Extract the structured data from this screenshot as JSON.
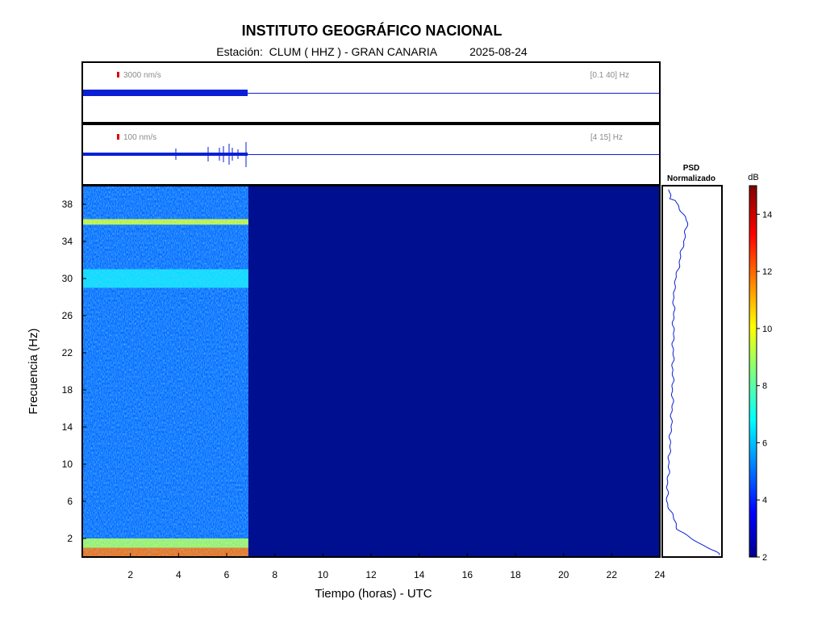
{
  "header": {
    "title": "INSTITUTO GEOGRÁFICO NACIONAL",
    "station_prefix": "Estación:",
    "station": "CLUM ( HHZ ) - GRAN CANARIA",
    "date": "2025-08-24"
  },
  "traces": [
    {
      "scale_label": "3000 nm/s",
      "band_label": "[0.1 40] Hz",
      "scale_color": "#e00000"
    },
    {
      "scale_label": "100 nm/s",
      "band_label": "[4 15] Hz",
      "scale_color": "#e00000"
    }
  ],
  "psd": {
    "title_line1": "PSD",
    "title_line2": "Normalizado"
  },
  "colorbar": {
    "unit": "dB",
    "ticks": [
      2,
      4,
      6,
      8,
      10,
      12,
      14
    ],
    "range": [
      2,
      15
    ]
  },
  "colors": {
    "trace": "#0a1fd6",
    "background_spectrogram": "#000f8f",
    "axis": "#000000"
  },
  "chart_data": {
    "type": "heatmap",
    "title": "INSTITUTO GEOGRÁFICO NACIONAL",
    "xlabel": "Tiempo (horas) - UTC",
    "ylabel": "Frecuencia  (Hz)",
    "xlim": [
      0,
      24
    ],
    "ylim": [
      0,
      40
    ],
    "x_ticks": [
      2,
      4,
      6,
      8,
      10,
      12,
      14,
      16,
      18,
      20,
      22,
      24
    ],
    "y_ticks": [
      2,
      6,
      10,
      14,
      18,
      22,
      26,
      30,
      34,
      38
    ],
    "data_end_hour": 6.9,
    "spectrogram_bands": [
      {
        "freq": [
          0,
          1
        ],
        "db": 12
      },
      {
        "freq": [
          1,
          2
        ],
        "db": 9
      },
      {
        "freq": [
          35.8,
          36.4
        ],
        "db": 9.5
      },
      {
        "freq": [
          29,
          31
        ],
        "db": 6.5
      },
      {
        "freq": [
          2,
          40
        ],
        "db": 5
      }
    ],
    "psd_profile": [
      {
        "freq": 0.5,
        "level": 0.98
      },
      {
        "freq": 1.5,
        "level": 0.6
      },
      {
        "freq": 3,
        "level": 0.25
      },
      {
        "freq": 6,
        "level": 0.05
      },
      {
        "freq": 16.5,
        "level": 0.15
      },
      {
        "freq": 29,
        "level": 0.18
      },
      {
        "freq": 36,
        "level": 0.42
      },
      {
        "freq": 38.5,
        "level": 0.2
      }
    ]
  }
}
